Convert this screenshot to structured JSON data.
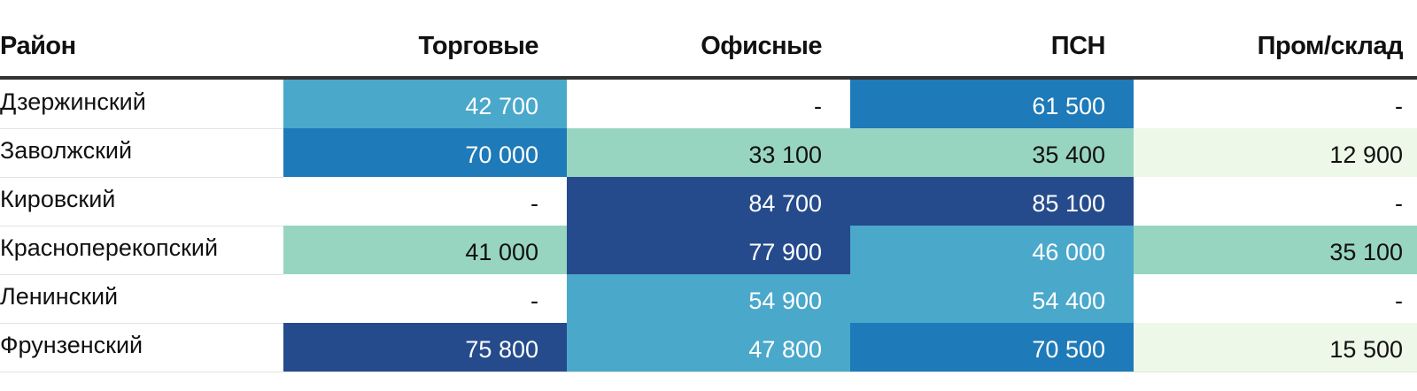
{
  "chart_data": {
    "type": "table",
    "columns": [
      "Район",
      "Торговые",
      "Офисные",
      "ПСН",
      "Пром/склад"
    ],
    "rows": [
      {
        "district": "Дзержинский",
        "values": [
          "42 700",
          "-",
          "61 500",
          "-"
        ]
      },
      {
        "district": "Заволжский",
        "values": [
          "70 000",
          "33 100",
          "35 400",
          "12 900"
        ]
      },
      {
        "district": "Кировский",
        "values": [
          "-",
          "84 700",
          "85 100",
          "-"
        ]
      },
      {
        "district": "Красноперекопский",
        "values": [
          "41 000",
          "77 900",
          "46 000",
          "35 100"
        ]
      },
      {
        "district": "Ленинский",
        "values": [
          "-",
          "54 900",
          "54 400",
          "-"
        ]
      },
      {
        "district": "Фрунзенский",
        "values": [
          "75 800",
          "47 800",
          "70 500",
          "15 500"
        ]
      }
    ]
  },
  "colors": {
    "empty": "#ffffff",
    "lightest": "#edf8e9",
    "light": "#98d5c1",
    "medium": "#4aa8cb",
    "dark": "#1e7ab8",
    "darkest": "#254b8c",
    "text_dark": "#111111",
    "text_light": "#ffffff"
  }
}
